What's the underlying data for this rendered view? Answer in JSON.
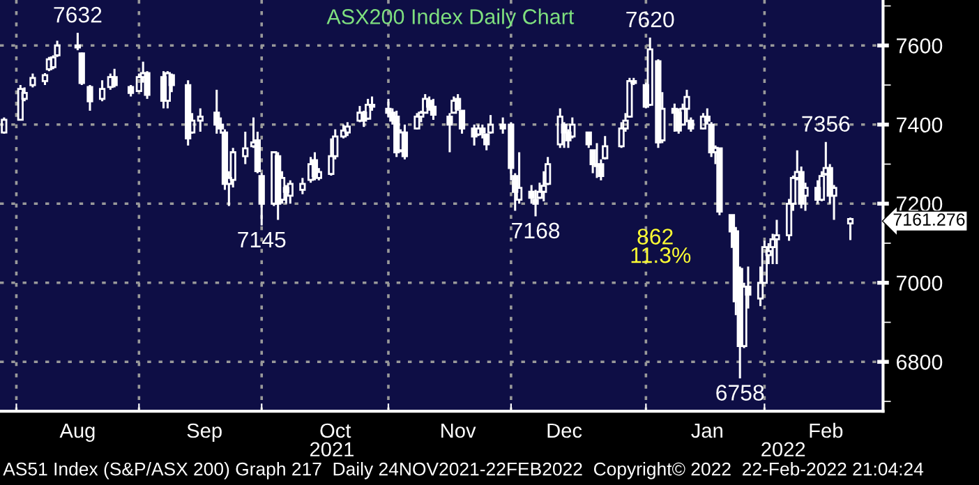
{
  "chart_data": {
    "type": "candlestick",
    "title": "ASX200 Index Daily Chart",
    "x": [
      "2021-07-30",
      "2021-08-03",
      "2021-08-04",
      "2021-08-06",
      "2021-08-09",
      "2021-08-10",
      "2021-08-11",
      "2021-08-12",
      "2021-08-17",
      "2021-08-18",
      "2021-08-20",
      "2021-08-23",
      "2021-08-25",
      "2021-08-26",
      "2021-08-30",
      "2021-09-01",
      "2021-09-02",
      "2021-09-03",
      "2021-09-07",
      "2021-09-08",
      "2021-09-09",
      "2021-09-13",
      "2021-09-14",
      "2021-09-16",
      "2021-09-20",
      "2021-09-21",
      "2021-09-22",
      "2021-09-23",
      "2021-09-24",
      "2021-09-27",
      "2021-09-29",
      "2021-09-30",
      "2021-10-01",
      "2021-10-04",
      "2021-10-05",
      "2021-10-06",
      "2021-10-07",
      "2021-10-08",
      "2021-10-11",
      "2021-10-13",
      "2021-10-14",
      "2021-10-15",
      "2021-10-18",
      "2021-10-19",
      "2021-10-21",
      "2021-10-22",
      "2021-10-25",
      "2021-10-26",
      "2021-10-27",
      "2021-10-28",
      "2021-11-01",
      "2021-11-02",
      "2021-11-03",
      "2021-11-04",
      "2021-11-05",
      "2021-11-08",
      "2021-11-09",
      "2021-11-10",
      "2021-11-11",
      "2021-11-12",
      "2021-11-16",
      "2021-11-17",
      "2021-11-18",
      "2021-11-19",
      "2021-11-22",
      "2021-11-23",
      "2021-11-24",
      "2021-11-25",
      "2021-11-26",
      "2021-11-29",
      "2021-12-01",
      "2021-12-02",
      "2021-12-03",
      "2021-12-06",
      "2021-12-07",
      "2021-12-08",
      "2021-12-09",
      "2021-12-10",
      "2021-12-13",
      "2021-12-14",
      "2021-12-15",
      "2021-12-16",
      "2021-12-20",
      "2021-12-21",
      "2021-12-22",
      "2021-12-23",
      "2021-12-24",
      "2021-12-28",
      "2021-12-29",
      "2021-12-30",
      "2021-12-31",
      "2022-01-03",
      "2022-01-04",
      "2022-01-06",
      "2022-01-07",
      "2022-01-10",
      "2022-01-11",
      "2022-01-12",
      "2022-01-13",
      "2022-01-14",
      "2022-01-17",
      "2022-01-18",
      "2022-01-19",
      "2022-01-20",
      "2022-01-21",
      "2022-01-24",
      "2022-01-25",
      "2022-01-26",
      "2022-01-27",
      "2022-01-28",
      "2022-01-31",
      "2022-02-01",
      "2022-02-02",
      "2022-02-03",
      "2022-02-04",
      "2022-02-07",
      "2022-02-08",
      "2022-02-09",
      "2022-02-10",
      "2022-02-11",
      "2022-02-14",
      "2022-02-15",
      "2022-02-16",
      "2022-02-17",
      "2022-02-18",
      "2022-02-22"
    ],
    "ohlc": [
      [
        7380,
        7418,
        7377,
        7412
      ],
      [
        7412,
        7500,
        7412,
        7490
      ],
      [
        7465,
        7494,
        7459,
        7480
      ],
      [
        7500,
        7529,
        7494,
        7518
      ],
      [
        7510,
        7530,
        7500,
        7525
      ],
      [
        7540,
        7571,
        7535,
        7565
      ],
      [
        7545,
        7575,
        7540,
        7570
      ],
      [
        7575,
        7612,
        7571,
        7600
      ],
      [
        7600,
        7632,
        7588,
        7595
      ],
      [
        7580,
        7582,
        7500,
        7505
      ],
      [
        7495,
        7500,
        7435,
        7459
      ],
      [
        7465,
        7512,
        7459,
        7490
      ],
      [
        7495,
        7529,
        7488,
        7520
      ],
      [
        7520,
        7541,
        7494,
        7500
      ],
      [
        7495,
        7500,
        7471,
        7480
      ],
      [
        7485,
        7529,
        7482,
        7520
      ],
      [
        7520,
        7559,
        7506,
        7530
      ],
      [
        7530,
        7535,
        7465,
        7475
      ],
      [
        7520,
        7535,
        7441,
        7460
      ],
      [
        7460,
        7535,
        7441,
        7530
      ],
      [
        7525,
        7529,
        7482,
        7500
      ],
      [
        7500,
        7512,
        7347,
        7365
      ],
      [
        7380,
        7429,
        7377,
        7410
      ],
      [
        7410,
        7441,
        7382,
        7420
      ],
      [
        7430,
        7488,
        7377,
        7400
      ],
      [
        7400,
        7418,
        7377,
        7390
      ],
      [
        7380,
        7388,
        7235,
        7250
      ],
      [
        7250,
        7282,
        7194,
        7265
      ],
      [
        7260,
        7341,
        7241,
        7330
      ],
      [
        7320,
        7382,
        7300,
        7340
      ],
      [
        7345,
        7418,
        7341,
        7355
      ],
      [
        7360,
        7382,
        7277,
        7282
      ],
      [
        7270,
        7277,
        7145,
        7200
      ],
      [
        7200,
        7330,
        7194,
        7330
      ],
      [
        7320,
        7330,
        7159,
        7200
      ],
      [
        7210,
        7282,
        7200,
        7265
      ],
      [
        7240,
        7247,
        7200,
        7230
      ],
      [
        7220,
        7259,
        7200,
        7250
      ],
      [
        7235,
        7265,
        7224,
        7250
      ],
      [
        7260,
        7318,
        7253,
        7300
      ],
      [
        7310,
        7330,
        7259,
        7270
      ],
      [
        7265,
        7290,
        7259,
        7280
      ],
      [
        7275,
        7365,
        7271,
        7320
      ],
      [
        7320,
        7388,
        7312,
        7370
      ],
      [
        7370,
        7400,
        7365,
        7385
      ],
      [
        7380,
        7406,
        7371,
        7395
      ],
      [
        7410,
        7447,
        7406,
        7430
      ],
      [
        7430,
        7435,
        7394,
        7410
      ],
      [
        7415,
        7465,
        7412,
        7450
      ],
      [
        7450,
        7471,
        7435,
        7445
      ],
      [
        7440,
        7465,
        7418,
        7430
      ],
      [
        7430,
        7441,
        7400,
        7410
      ],
      [
        7420,
        7435,
        7318,
        7330
      ],
      [
        7335,
        7388,
        7330,
        7380
      ],
      [
        7380,
        7400,
        7312,
        7320
      ],
      [
        7390,
        7429,
        7388,
        7420
      ],
      [
        7420,
        7435,
        7406,
        7430
      ],
      [
        7430,
        7477,
        7429,
        7465
      ],
      [
        7460,
        7471,
        7435,
        7445
      ],
      [
        7445,
        7465,
        7412,
        7425
      ],
      [
        7420,
        7429,
        7330,
        7400
      ],
      [
        7430,
        7471,
        7429,
        7460
      ],
      [
        7465,
        7477,
        7435,
        7440
      ],
      [
        7435,
        7435,
        7377,
        7390
      ],
      [
        7390,
        7400,
        7347,
        7370
      ],
      [
        7375,
        7400,
        7371,
        7390
      ],
      [
        7390,
        7400,
        7365,
        7380
      ],
      [
        7375,
        7377,
        7335,
        7350
      ],
      [
        7380,
        7424,
        7377,
        7400
      ],
      [
        7400,
        7418,
        7377,
        7390
      ],
      [
        7400,
        7406,
        7259,
        7290
      ],
      [
        7270,
        7277,
        7182,
        7230
      ],
      [
        7210,
        7330,
        7200,
        7240
      ],
      [
        7230,
        7247,
        7200,
        7215
      ],
      [
        7210,
        7235,
        7168,
        7200
      ],
      [
        7215,
        7253,
        7212,
        7230
      ],
      [
        7230,
        7282,
        7206,
        7245
      ],
      [
        7250,
        7318,
        7247,
        7300
      ],
      [
        7350,
        7441,
        7341,
        7420
      ],
      [
        7400,
        7406,
        7341,
        7380
      ],
      [
        7380,
        7388,
        7341,
        7360
      ],
      [
        7370,
        7418,
        7365,
        7400
      ],
      [
        7380,
        7382,
        7341,
        7350
      ],
      [
        7335,
        7335,
        7277,
        7300
      ],
      [
        7295,
        7353,
        7265,
        7300
      ],
      [
        7300,
        7312,
        7259,
        7270
      ],
      [
        7315,
        7371,
        7312,
        7345
      ],
      [
        7345,
        7406,
        7341,
        7390
      ],
      [
        7390,
        7429,
        7382,
        7410
      ],
      [
        7420,
        7518,
        7418,
        7510
      ],
      [
        7510,
        7518,
        7500,
        7505
      ],
      [
        7500,
        7506,
        7441,
        7445
      ],
      [
        7450,
        7620,
        7447,
        7590
      ],
      [
        7560,
        7565,
        7341,
        7355
      ],
      [
        7360,
        7482,
        7353,
        7440
      ],
      [
        7440,
        7453,
        7382,
        7430
      ],
      [
        7430,
        7441,
        7377,
        7385
      ],
      [
        7400,
        7453,
        7400,
        7440
      ],
      [
        7440,
        7488,
        7406,
        7470
      ],
      [
        7410,
        7418,
        7382,
        7390
      ],
      [
        7390,
        7429,
        7388,
        7420
      ],
      [
        7420,
        7441,
        7400,
        7410
      ],
      [
        7400,
        7406,
        7318,
        7330
      ],
      [
        7330,
        7347,
        7300,
        7341
      ],
      [
        7340,
        7341,
        7171,
        7180
      ],
      [
        7171,
        7171,
        7088,
        7130
      ],
      [
        7130,
        7141,
        6918,
        6953
      ],
      [
        7035,
        7041,
        6758,
        6840
      ],
      [
        6840,
        7000,
        6835,
        6990
      ],
      [
        6990,
        7041,
        6935,
        6970
      ],
      [
        6960,
        7041,
        6941,
        7000
      ],
      [
        7000,
        7106,
        7000,
        7090
      ],
      [
        7070,
        7100,
        7047,
        7080
      ],
      [
        7090,
        7124,
        7047,
        7110
      ],
      [
        7110,
        7159,
        7047,
        7120
      ],
      [
        7120,
        7212,
        7106,
        7200
      ],
      [
        7200,
        7271,
        7182,
        7265
      ],
      [
        7265,
        7335,
        7259,
        7280
      ],
      [
        7280,
        7294,
        7188,
        7200
      ],
      [
        7220,
        7253,
        7182,
        7240
      ],
      [
        7240,
        7259,
        7200,
        7210
      ],
      [
        7210,
        7282,
        7206,
        7270
      ],
      [
        7275,
        7356,
        7271,
        7290
      ],
      [
        7290,
        7300,
        7200,
        7220
      ],
      [
        7220,
        7247,
        7159,
        7240
      ],
      [
        7150,
        7165,
        7108,
        7161
      ]
    ],
    "color": "#ffffff",
    "xlim": [
      "2021-07-29",
      "2022-03-02"
    ],
    "xticks": [
      {
        "value": "2021-08-02",
        "label": null
      },
      {
        "value": "2021-08-17",
        "label": "Aug"
      },
      {
        "value": "2021-09-01",
        "label": null
      },
      {
        "value": "2021-09-17",
        "label": "Sep"
      },
      {
        "value": "2021-10-01",
        "label": null
      },
      {
        "value": "2021-10-19",
        "label": "Oct"
      },
      {
        "value": "2021-11-01",
        "label": null
      },
      {
        "value": "2021-11-18",
        "label": "Nov"
      },
      {
        "value": "2021-12-01",
        "label": null
      },
      {
        "value": "2021-12-14",
        "label": "Dec"
      },
      {
        "value": "2022-01-03",
        "label": null
      },
      {
        "value": "2022-01-18",
        "label": "Jan"
      },
      {
        "value": "2022-02-01",
        "label": null
      },
      {
        "value": "2022-02-16",
        "label": "Feb"
      }
    ],
    "ylim": [
      6675,
      7715
    ],
    "yticks": [
      {
        "value": 6700,
        "label": null
      },
      6800,
      {
        "value": 6900,
        "label": null
      },
      7000,
      {
        "value": 7100,
        "label": null
      },
      7200,
      {
        "value": 7300,
        "label": null
      },
      7400,
      {
        "value": 7500,
        "label": null
      },
      7600,
      {
        "value": 7700,
        "label": null
      }
    ],
    "grid": true,
    "annotations": [
      {
        "text": "7632",
        "x": "2021-08-17",
        "y": 7632
      },
      {
        "text": "7145",
        "x": "2021-10-01",
        "y": 7145
      },
      {
        "text": "7168",
        "x": "2021-12-07",
        "y": 7168
      },
      {
        "text": "7620",
        "x": "2022-01-04",
        "y": 7620
      },
      {
        "text": "7356",
        "x": "2022-02-16",
        "y": 7356
      },
      {
        "text": "6758",
        "x": "2022-01-26",
        "y": 6758
      },
      "862",
      "11.3%",
      "7161.276",
      "2021",
      "2022",
      "AS51 Index (S&P/ASX 200) Graph 217  Daily 24NOV2021-22FEB2022  Copyright© 2022  22-Feb-2022 21:04:24"
    ]
  }
}
